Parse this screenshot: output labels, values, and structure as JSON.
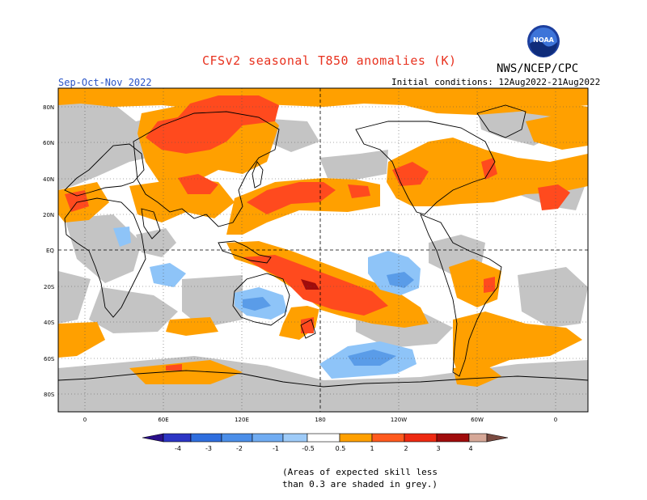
{
  "header": {
    "title": "CFSv2 seasonal T850 anomalies (K)",
    "season": "Sep-Oct-Nov 2022",
    "agency": "NWS/NCEP/CPC",
    "initial_conditions": "Initial conditions: 12Aug2022-21Aug2022",
    "logo_text": "NOAA"
  },
  "map": {
    "lat_labels": [
      "80N",
      "60N",
      "40N",
      "20N",
      "EQ",
      "20S",
      "40S",
      "60S",
      "80S"
    ],
    "lon_labels": [
      "0",
      "60E",
      "120E",
      "180",
      "120W",
      "60W",
      "0"
    ]
  },
  "colorbar": {
    "labels": [
      "-4",
      "-3",
      "-2",
      "-1",
      "-0.5",
      "0.5",
      "1",
      "2",
      "3",
      "4"
    ],
    "colors": [
      "#2a0f8a",
      "#2c35c4",
      "#2f6ede",
      "#58a0ee",
      "#8ec4f8",
      "#ffffff",
      "#ffa000",
      "#ff5a1e",
      "#ee2a12",
      "#a00c0c",
      "#d6a898",
      "#7a4a40"
    ]
  },
  "note": {
    "line1": "(Areas of expected skill less",
    "line2": "than 0.3 are shaded in grey.)"
  },
  "palette": {
    "title_red": "#e8321f",
    "season_blue": "#2a55c8",
    "skill_grey": "#c4c4c4",
    "orange": "#ffa000",
    "red": "#ff4a1e"
  }
}
